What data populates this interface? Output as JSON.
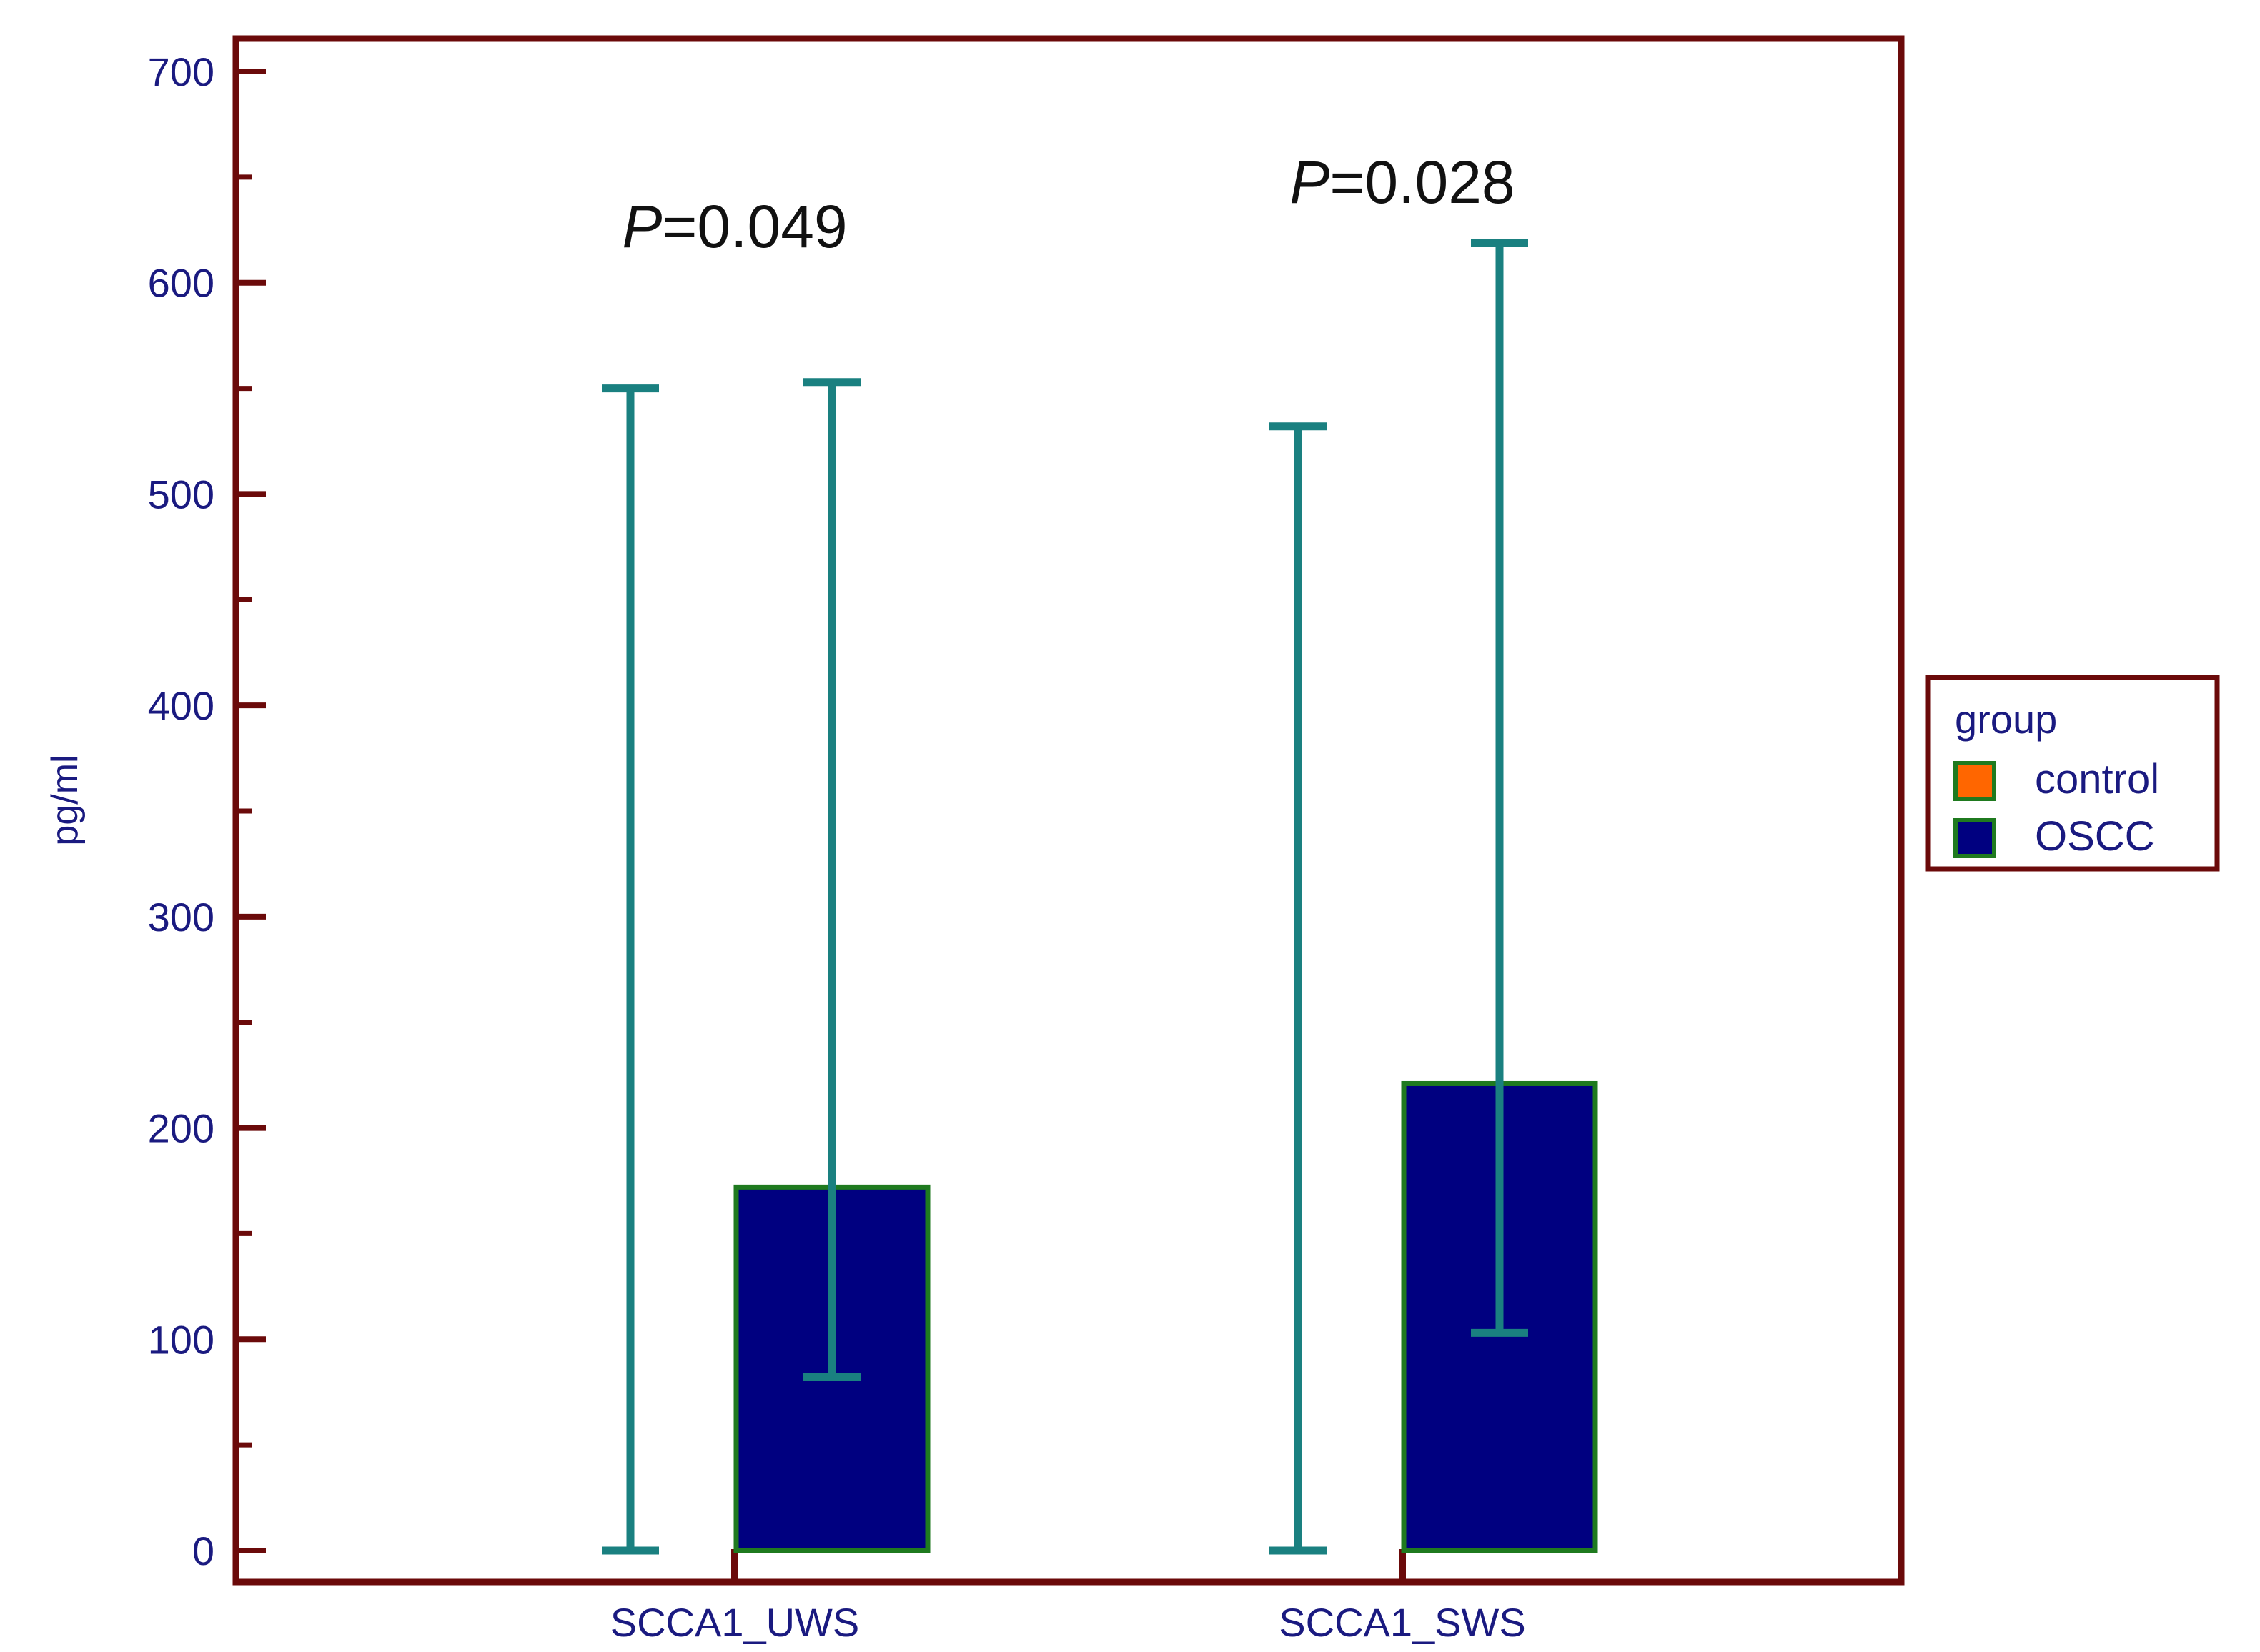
{
  "chart_data": {
    "type": "bar",
    "title": "",
    "xlabel": "",
    "ylabel": "pg/ml",
    "ylim": [
      0,
      700
    ],
    "yticks": [
      0,
      100,
      200,
      300,
      400,
      500,
      600,
      700
    ],
    "categories": [
      "SCCA1_UWS",
      "SCCA1_SWS"
    ],
    "series": [
      {
        "name": "control",
        "color": "#ff6600",
        "values": [
          0,
          0
        ],
        "error_low": [
          0,
          0
        ],
        "error_high": [
          550,
          532
        ]
      },
      {
        "name": "OSCC",
        "color": "#000080",
        "values": [
          172,
          221
        ],
        "error_low": [
          82,
          103
        ],
        "error_high": [
          553,
          619
        ]
      }
    ],
    "annotations": [
      {
        "category": "SCCA1_UWS",
        "italic_prefix": "P",
        "text": "=0.049",
        "y": 627
      },
      {
        "category": "SCCA1_SWS",
        "italic_prefix": "P",
        "text": "=0.028",
        "y": 648
      }
    ],
    "legend": {
      "title": "group",
      "position": "right",
      "entries": [
        "control",
        "OSCC"
      ]
    },
    "colors": {
      "frame": "#6b0a0a",
      "axis_text": "#1a1a80",
      "error_bar": "#1a8080",
      "bar_border": "#1f7a1f"
    }
  }
}
